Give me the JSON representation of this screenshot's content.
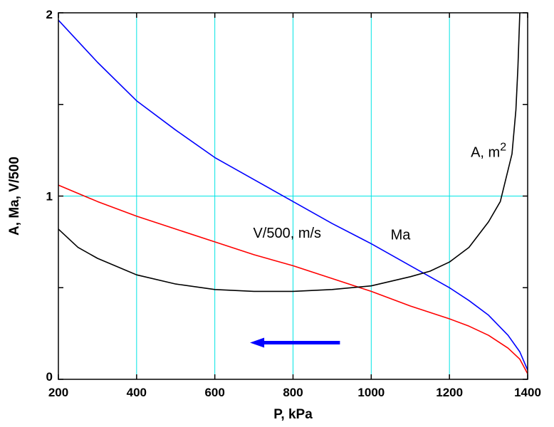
{
  "chart_data": {
    "type": "line",
    "title": "",
    "xlabel": "P, kPa",
    "ylabel": "A, Ma,  V/500",
    "xlim": [
      200,
      1400
    ],
    "ylim": [
      0,
      2
    ],
    "xticks": [
      200,
      400,
      600,
      800,
      1000,
      1200,
      1400
    ],
    "xtick_labels": [
      "200",
      "400",
      "600",
      "800",
      "1000",
      "1200",
      "1400"
    ],
    "yticks_labeled": [
      0,
      1,
      2
    ],
    "ytick_labels": [
      "0",
      "1",
      "2"
    ],
    "yticks_minor": [
      0.5,
      1.5
    ],
    "grid": true,
    "grid_color": "#00e5e5",
    "series": [
      {
        "name": "Ma",
        "color": "#0000ff",
        "x": [
          200,
          300,
          400,
          500,
          600,
          700,
          800,
          900,
          1000,
          1100,
          1200,
          1250,
          1300,
          1350,
          1380,
          1400
        ],
        "y": [
          1.96,
          1.73,
          1.52,
          1.36,
          1.21,
          1.09,
          0.97,
          0.85,
          0.74,
          0.62,
          0.5,
          0.43,
          0.35,
          0.24,
          0.15,
          0.05
        ]
      },
      {
        "name": "V/500, m/s",
        "color": "#ff0000",
        "x": [
          200,
          300,
          400,
          500,
          600,
          700,
          800,
          900,
          1000,
          1100,
          1200,
          1250,
          1300,
          1350,
          1380,
          1400
        ],
        "y": [
          1.06,
          0.97,
          0.89,
          0.82,
          0.75,
          0.68,
          0.62,
          0.55,
          0.48,
          0.4,
          0.33,
          0.29,
          0.24,
          0.17,
          0.11,
          0.03
        ]
      },
      {
        "name": "A, m²",
        "color": "#000000",
        "x": [
          200,
          250,
          300,
          400,
          500,
          600,
          700,
          800,
          900,
          1000,
          1100,
          1150,
          1200,
          1250,
          1300,
          1330,
          1360,
          1370,
          1375,
          1380
        ],
        "y": [
          0.82,
          0.72,
          0.66,
          0.57,
          0.52,
          0.49,
          0.48,
          0.48,
          0.49,
          0.51,
          0.56,
          0.59,
          0.64,
          0.72,
          0.86,
          0.97,
          1.23,
          1.47,
          1.7,
          2.0
        ]
      }
    ],
    "annotations": [
      {
        "text": "Ma",
        "x": 1075,
        "y": 0.79
      },
      {
        "text": "V/500, m/s",
        "x": 785,
        "y": 0.8
      },
      {
        "text": "A, m",
        "superscript": "2",
        "x": 1300,
        "y": 1.24
      }
    ],
    "arrow": {
      "from_x": 920,
      "to_x": 690,
      "y": 0.2,
      "color": "#0000ff"
    }
  }
}
